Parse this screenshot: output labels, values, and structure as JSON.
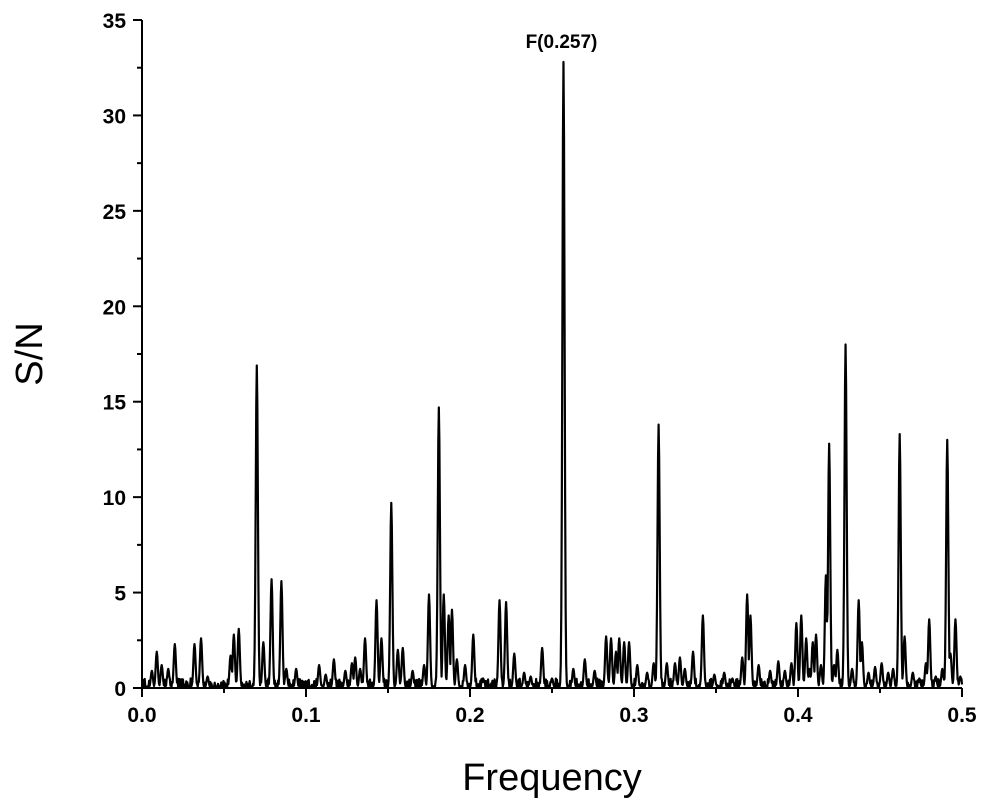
{
  "chart_data": {
    "type": "line",
    "xlabel": "Frequency",
    "ylabel": "S/N",
    "xlim": [
      0.0,
      0.5
    ],
    "ylim": [
      0,
      35
    ],
    "x_ticks": [
      "0.0",
      "0.1",
      "0.2",
      "0.3",
      "0.4",
      "0.5"
    ],
    "y_ticks": [
      "0",
      "5",
      "10",
      "15",
      "20",
      "25",
      "30",
      "35"
    ],
    "grid": false,
    "line_color": "#000000",
    "annotations": [
      {
        "text": "F(0.257)",
        "x": 0.257,
        "y": 32.8
      }
    ],
    "peaks": [
      [
        0.006,
        0.9
      ],
      [
        0.009,
        1.9
      ],
      [
        0.012,
        1.2
      ],
      [
        0.016,
        1.0
      ],
      [
        0.02,
        2.3
      ],
      [
        0.032,
        2.3
      ],
      [
        0.036,
        2.6
      ],
      [
        0.04,
        0.6
      ],
      [
        0.054,
        1.7
      ],
      [
        0.056,
        2.8
      ],
      [
        0.059,
        3.1
      ],
      [
        0.07,
        16.9
      ],
      [
        0.074,
        2.4
      ],
      [
        0.079,
        5.7
      ],
      [
        0.085,
        5.6
      ],
      [
        0.088,
        1.0
      ],
      [
        0.094,
        1.0
      ],
      [
        0.108,
        1.2
      ],
      [
        0.112,
        0.7
      ],
      [
        0.117,
        1.5
      ],
      [
        0.124,
        0.9
      ],
      [
        0.128,
        1.3
      ],
      [
        0.13,
        1.6
      ],
      [
        0.133,
        1.0
      ],
      [
        0.136,
        2.6
      ],
      [
        0.143,
        4.6
      ],
      [
        0.146,
        2.6
      ],
      [
        0.152,
        9.7
      ],
      [
        0.156,
        2.0
      ],
      [
        0.159,
        2.1
      ],
      [
        0.165,
        0.9
      ],
      [
        0.172,
        1.2
      ],
      [
        0.175,
        4.9
      ],
      [
        0.181,
        14.7
      ],
      [
        0.184,
        4.9
      ],
      [
        0.187,
        3.8
      ],
      [
        0.189,
        4.1
      ],
      [
        0.192,
        1.5
      ],
      [
        0.197,
        1.2
      ],
      [
        0.202,
        2.8
      ],
      [
        0.208,
        0.5
      ],
      [
        0.218,
        4.6
      ],
      [
        0.222,
        4.5
      ],
      [
        0.227,
        1.8
      ],
      [
        0.233,
        0.8
      ],
      [
        0.237,
        0.6
      ],
      [
        0.244,
        2.1
      ],
      [
        0.25,
        0.5
      ],
      [
        0.257,
        32.8
      ],
      [
        0.263,
        1.0
      ],
      [
        0.27,
        1.5
      ],
      [
        0.276,
        0.9
      ],
      [
        0.283,
        2.7
      ],
      [
        0.286,
        2.6
      ],
      [
        0.289,
        1.9
      ],
      [
        0.291,
        2.6
      ],
      [
        0.294,
        2.4
      ],
      [
        0.297,
        2.4
      ],
      [
        0.302,
        1.2
      ],
      [
        0.308,
        0.8
      ],
      [
        0.312,
        1.3
      ],
      [
        0.315,
        13.8
      ],
      [
        0.32,
        1.3
      ],
      [
        0.325,
        1.3
      ],
      [
        0.328,
        1.6
      ],
      [
        0.331,
        1.0
      ],
      [
        0.336,
        1.9
      ],
      [
        0.342,
        3.8
      ],
      [
        0.349,
        0.7
      ],
      [
        0.355,
        0.8
      ],
      [
        0.36,
        0.5
      ],
      [
        0.366,
        1.6
      ],
      [
        0.369,
        4.9
      ],
      [
        0.371,
        3.8
      ],
      [
        0.376,
        1.2
      ],
      [
        0.383,
        0.9
      ],
      [
        0.388,
        1.4
      ],
      [
        0.392,
        0.9
      ],
      [
        0.396,
        1.3
      ],
      [
        0.399,
        3.4
      ],
      [
        0.402,
        3.8
      ],
      [
        0.405,
        2.6
      ],
      [
        0.407,
        1.0
      ],
      [
        0.409,
        2.4
      ],
      [
        0.411,
        2.8
      ],
      [
        0.414,
        1.2
      ],
      [
        0.417,
        5.9
      ],
      [
        0.419,
        12.8
      ],
      [
        0.422,
        1.2
      ],
      [
        0.424,
        2.0
      ],
      [
        0.429,
        18.0
      ],
      [
        0.433,
        1.0
      ],
      [
        0.437,
        4.6
      ],
      [
        0.439,
        2.4
      ],
      [
        0.443,
        0.8
      ],
      [
        0.447,
        1.1
      ],
      [
        0.451,
        1.3
      ],
      [
        0.455,
        0.8
      ],
      [
        0.458,
        1.0
      ],
      [
        0.462,
        13.3
      ],
      [
        0.465,
        2.7
      ],
      [
        0.47,
        0.8
      ],
      [
        0.474,
        0.5
      ],
      [
        0.478,
        1.3
      ],
      [
        0.48,
        3.6
      ],
      [
        0.484,
        0.6
      ],
      [
        0.488,
        1.0
      ],
      [
        0.491,
        13.0
      ],
      [
        0.493,
        1.8
      ],
      [
        0.496,
        3.6
      ],
      [
        0.499,
        0.6
      ]
    ]
  }
}
